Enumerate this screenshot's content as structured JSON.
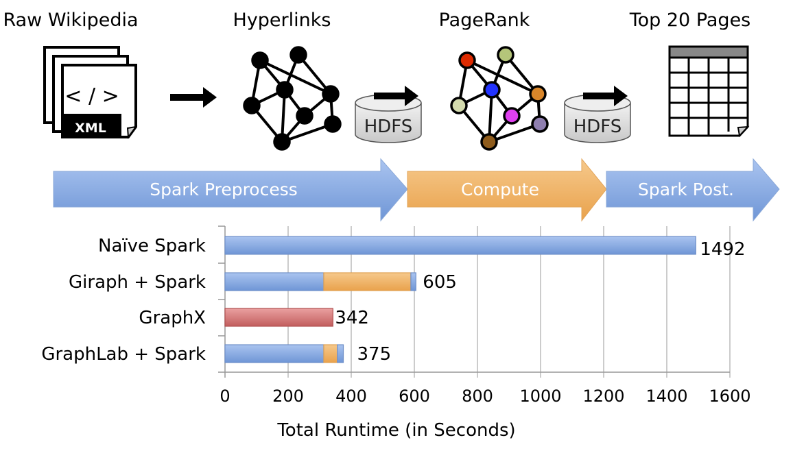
{
  "pipeline": {
    "stages": [
      "Raw Wikipedia",
      "Hyperlinks",
      "PageRank",
      "Top 20 Pages"
    ],
    "xml_icon": {
      "code": "< / >",
      "label": "XML"
    },
    "storage": [
      "HDFS",
      "HDFS"
    ],
    "phases": [
      {
        "label": "Spark Preprocess",
        "color": "#7fa6e0"
      },
      {
        "label": "Compute",
        "color": "#f0b264"
      },
      {
        "label": "Spark Post.",
        "color": "#7fa6e0"
      }
    ],
    "pagerank_node_colors": [
      "#dd2a00",
      "#b5c57a",
      "#2233ff",
      "#d9862a",
      "#d4dbae",
      "#e040f0",
      "#8f7fb0",
      "#8f5c1c"
    ]
  },
  "chart_data": {
    "type": "bar",
    "orientation": "horizontal",
    "stacked": true,
    "categories": [
      "Naïve Spark",
      "Giraph + Spark",
      "GraphX",
      "GraphLab + Spark"
    ],
    "segments": [
      [
        {
          "phase": "Spark Preprocess",
          "value": 1492
        }
      ],
      [
        {
          "phase": "Spark Preprocess",
          "value": 313
        },
        {
          "phase": "Compute",
          "value": 276
        },
        {
          "phase": "Spark Post.",
          "value": 16
        }
      ],
      [
        {
          "phase": "GraphX",
          "value": 342
        }
      ],
      [
        {
          "phase": "Spark Preprocess",
          "value": 313
        },
        {
          "phase": "Compute",
          "value": 43
        },
        {
          "phase": "Spark Post.",
          "value": 19
        }
      ]
    ],
    "totals": [
      "1492",
      "605",
      "342",
      "375"
    ],
    "xlabel": "Total Runtime (in Seconds)",
    "xlim": [
      0,
      1600
    ],
    "xticks": [
      "0",
      "200",
      "400",
      "600",
      "800",
      "1000",
      "1200",
      "1400",
      "1600"
    ],
    "grid": true,
    "colors": {
      "Spark Preprocess": "#7fa6e0",
      "Compute": "#f0b264",
      "Spark Post.": "#7fa6e0",
      "GraphX": "#d07070"
    }
  }
}
